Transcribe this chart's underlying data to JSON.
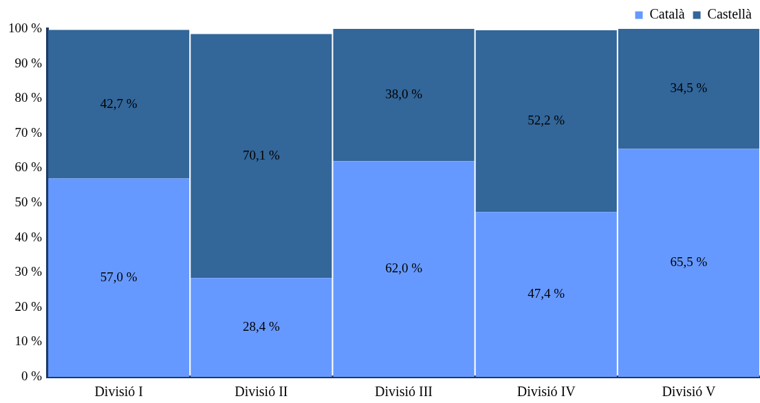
{
  "chart_data": {
    "type": "bar",
    "stacked": true,
    "categories": [
      "Divisió I",
      "Divisió II",
      "Divisió III",
      "Divisió IV",
      "Divisió V"
    ],
    "series": [
      {
        "name": "Català",
        "color": "#6699ff",
        "values": [
          57.0,
          28.4,
          62.0,
          47.4,
          65.5
        ],
        "value_labels": [
          "57,0 %",
          "28,4 %",
          "62,0 %",
          "47,4 %",
          "65,5 %"
        ]
      },
      {
        "name": "Castellà",
        "color": "#336699",
        "values": [
          42.7,
          70.1,
          38.0,
          52.2,
          34.5
        ],
        "value_labels": [
          "42,7 %",
          "70,1 %",
          "38,0 %",
          "52,2 %",
          "34,5 %"
        ]
      }
    ],
    "ylim": [
      0,
      100
    ],
    "yticks": [
      {
        "value": 0,
        "label": "0 %"
      },
      {
        "value": 10,
        "label": "10 %"
      },
      {
        "value": 20,
        "label": "20 %"
      },
      {
        "value": 30,
        "label": "30 %"
      },
      {
        "value": 40,
        "label": "40 %"
      },
      {
        "value": 50,
        "label": "50 %"
      },
      {
        "value": 60,
        "label": "60 %"
      },
      {
        "value": 70,
        "label": "70 %"
      },
      {
        "value": 80,
        "label": "80 %"
      },
      {
        "value": 90,
        "label": "90 %"
      },
      {
        "value": 100,
        "label": "100 %"
      }
    ],
    "grid": false,
    "legend": "top right"
  }
}
